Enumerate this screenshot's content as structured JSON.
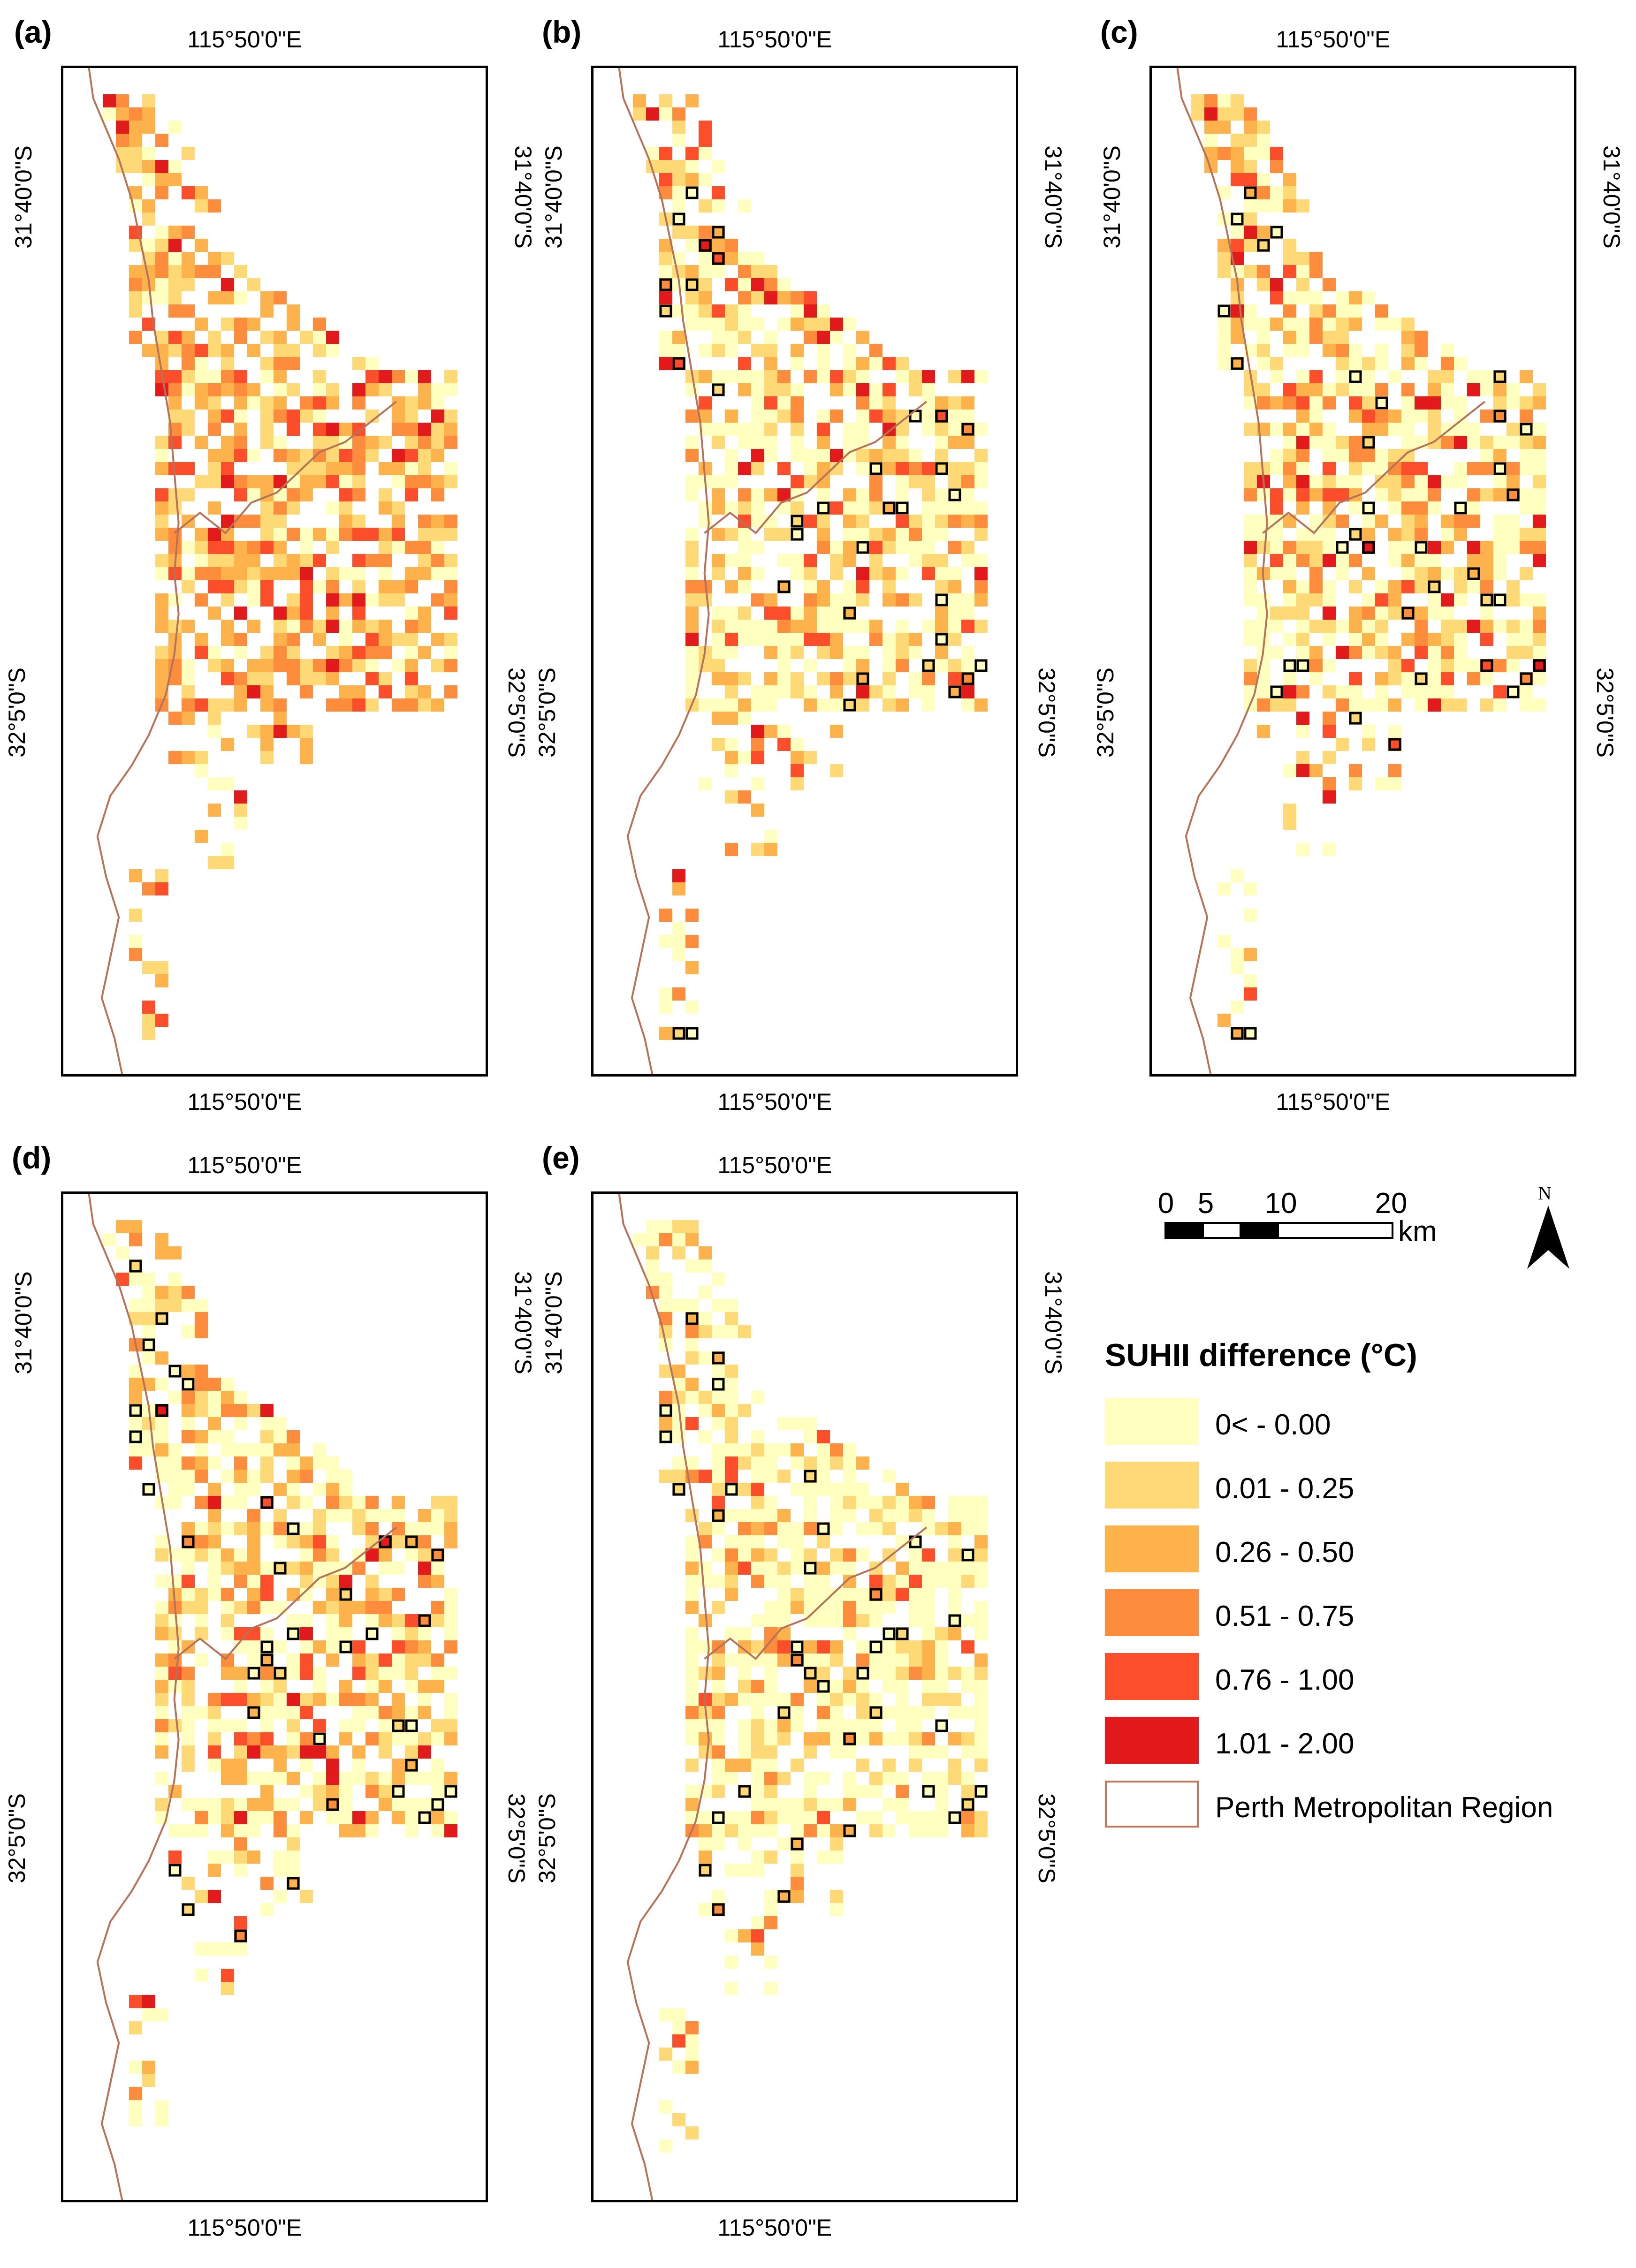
{
  "panels": [
    {
      "label": "(a)",
      "lon_top": "115°50'0\"E",
      "lon_bottom": "115°50'0\"E",
      "lat_top": "31°40'0\"S",
      "lat_bottom": "32°5'0\"S",
      "highlight_boxes": false
    },
    {
      "label": "(b)",
      "lon_top": "115°50'0\"E",
      "lon_bottom": "115°50'0\"E",
      "lat_top": "31°40'0\"S",
      "lat_bottom": "32°5'0\"S",
      "highlight_boxes": true
    },
    {
      "label": "(c)",
      "lon_top": "115°50'0\"E",
      "lon_bottom": "115°50'0\"E",
      "lat_top": "31°40'0\"S",
      "lat_bottom": "32°5'0\"S",
      "highlight_boxes": true
    },
    {
      "label": "(d)",
      "lon_top": "115°50'0\"E",
      "lon_bottom": "115°50'0\"E",
      "lat_top": "31°40'0\"S",
      "lat_bottom": "32°5'0\"S",
      "highlight_boxes": true
    },
    {
      "label": "(e)",
      "lon_top": "115°50'0\"E",
      "lon_bottom": "115°50'0\"E",
      "lat_top": "31°40'0\"S",
      "lat_bottom": "32°5'0\"S",
      "highlight_boxes": true
    }
  ],
  "scalebar": {
    "ticks": [
      "0",
      "5",
      "10",
      "20"
    ],
    "unit": "km"
  },
  "north_arrow": {
    "label": "N"
  },
  "legend": {
    "title": "SUHII difference (°C)",
    "items": [
      {
        "label": "0< - 0.00",
        "color": "#ffffbf"
      },
      {
        "label": "0.01 - 0.25",
        "color": "#fed976"
      },
      {
        "label": "0.26 - 0.50",
        "color": "#feb24c"
      },
      {
        "label": "0.51 - 0.75",
        "color": "#fd8d3c"
      },
      {
        "label": "0.76 - 1.00",
        "color": "#fc4e2a"
      },
      {
        "label": "1.01 - 2.00",
        "color": "#e31a1c"
      },
      {
        "label": "Perth Metropolitan Region",
        "color": "#ffffff",
        "outline": "#c0785a"
      }
    ]
  },
  "colors": {
    "coastline": "#b5735a",
    "frame": "#000000",
    "highlight": "#000000"
  }
}
